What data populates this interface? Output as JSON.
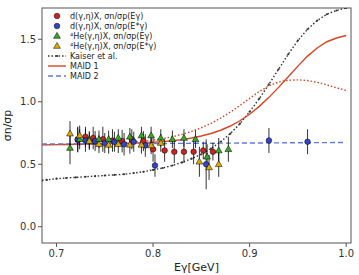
{
  "chart_data": {
    "type": "line",
    "xlabel": "Eγ[GeV]",
    "ylabel": "σn/σp",
    "xlim": [
      0.685,
      1.005
    ],
    "ylim": [
      -0.13,
      1.75
    ],
    "xticks": [
      0.7,
      0.8,
      0.9,
      {
        "value": 1,
        "label": "1.0"
      }
    ],
    "yticks": [
      {
        "value": 0,
        "label": "0.0"
      },
      0.5,
      {
        "value": 1,
        "label": "1.0"
      },
      1.5
    ],
    "grid": false,
    "legend": "upper left",
    "series": [
      {
        "name": "d(γ,η)X, σn/σp(Eγ)",
        "type": "scatter",
        "color": "#cc2222",
        "marker": "circle",
        "x": [
          0.722,
          0.73,
          0.738,
          0.748,
          0.758,
          0.768,
          0.778,
          0.79,
          0.8,
          0.812,
          0.822,
          0.832,
          0.842,
          0.852,
          0.862
        ],
        "values": [
          0.695,
          0.72,
          0.71,
          0.7,
          0.69,
          0.685,
          0.7,
          0.685,
          0.62,
          0.61,
          0.6,
          0.6,
          0.6,
          0.61,
          0.6
        ],
        "yerr": [
          0.1,
          0.08,
          0.09,
          0.1,
          0.09,
          0.09,
          0.08,
          0.08,
          0.1,
          0.09,
          0.09,
          0.09,
          0.1,
          0.07,
          0.07
        ]
      },
      {
        "name": "d(γ,η)X, σn/σp(E*γ)",
        "type": "scatter",
        "color": "#3344cc",
        "marker": "circle",
        "x": [
          0.722,
          0.73,
          0.74,
          0.75,
          0.76,
          0.77,
          0.78,
          0.792,
          0.802,
          0.855,
          0.92,
          0.96
        ],
        "values": [
          0.7,
          0.69,
          0.685,
          0.67,
          0.68,
          0.66,
          0.68,
          0.65,
          0.49,
          0.5,
          0.69,
          0.68
        ],
        "yerr": [
          0.1,
          0.09,
          0.08,
          0.08,
          0.08,
          0.09,
          0.08,
          0.09,
          0.09,
          0.2,
          0.1,
          0.1
        ]
      },
      {
        "name": "⁴He(γ,η)X, σn/σp(Eγ)",
        "type": "scatter",
        "color": "#33aa22",
        "marker": "triangle",
        "x": [
          0.714,
          0.724,
          0.734,
          0.744,
          0.754,
          0.764,
          0.776,
          0.788,
          0.798,
          0.808,
          0.82,
          0.832,
          0.844,
          0.856,
          0.868,
          0.878
        ],
        "values": [
          0.63,
          0.7,
          0.695,
          0.7,
          0.7,
          0.71,
          0.72,
          0.73,
          0.73,
          0.71,
          0.7,
          0.71,
          0.7,
          0.56,
          0.61,
          0.62
        ],
        "yerr": [
          0.13,
          0.08,
          0.07,
          0.07,
          0.07,
          0.07,
          0.07,
          0.07,
          0.07,
          0.07,
          0.07,
          0.07,
          0.07,
          0.1,
          0.1,
          0.1
        ]
      },
      {
        "name": "⁴He(γ,η)X, σn/σp(E*γ)",
        "type": "scatter",
        "color": "#ddaa00",
        "marker": "triangle",
        "x": [
          0.714,
          0.724,
          0.734,
          0.744,
          0.754,
          0.764,
          0.776,
          0.788,
          0.798,
          0.808,
          0.848,
          0.858,
          0.868
        ],
        "values": [
          0.745,
          0.73,
          0.685,
          0.66,
          0.655,
          0.66,
          0.655,
          0.655,
          0.65,
          0.67,
          0.52,
          0.475,
          0.5
        ],
        "yerr": [
          0.1,
          0.08,
          0.07,
          0.07,
          0.07,
          0.07,
          0.07,
          0.07,
          0.07,
          0.07,
          0.12,
          0.1,
          0.1
        ]
      },
      {
        "name": "Kaiser et al.",
        "type": "line",
        "color": "#333333",
        "line_style": "dotted",
        "marker": "point",
        "x": [
          0.685,
          0.69,
          0.7,
          0.71,
          0.72,
          0.73,
          0.74,
          0.75,
          0.76,
          0.77,
          0.78,
          0.79,
          0.8,
          0.81,
          0.82,
          0.83,
          0.84,
          0.85,
          0.86,
          0.87,
          0.88,
          0.89,
          0.9,
          0.91,
          0.92,
          0.93,
          0.94,
          0.95,
          0.96,
          0.97,
          0.98,
          0.99,
          1.0
        ],
        "values": [
          0.37,
          0.375,
          0.385,
          0.39,
          0.395,
          0.4,
          0.405,
          0.41,
          0.415,
          0.42,
          0.43,
          0.44,
          0.455,
          0.47,
          0.49,
          0.515,
          0.545,
          0.58,
          0.625,
          0.68,
          0.745,
          0.825,
          0.92,
          1.025,
          1.14,
          1.26,
          1.38,
          1.49,
          1.58,
          1.65,
          1.7,
          1.73,
          1.75
        ]
      },
      {
        "name": "MAID 1",
        "type": "line",
        "color": "#dd4422",
        "line_style": "solid",
        "x": [
          0.685,
          0.7,
          0.71,
          0.72,
          0.73,
          0.74,
          0.75,
          0.76,
          0.77,
          0.78,
          0.79,
          0.8,
          0.81,
          0.82,
          0.83,
          0.84,
          0.85,
          0.86,
          0.87,
          0.88,
          0.89,
          0.9,
          0.91,
          0.92,
          0.93,
          0.94,
          0.95,
          0.96,
          0.97,
          0.98,
          0.99,
          1.0
        ],
        "values": [
          0.655,
          0.657,
          0.658,
          0.66,
          0.661,
          0.662,
          0.663,
          0.665,
          0.667,
          0.669,
          0.672,
          0.676,
          0.681,
          0.688,
          0.697,
          0.71,
          0.726,
          0.746,
          0.772,
          0.806,
          0.848,
          0.9,
          0.963,
          1.035,
          1.115,
          1.2,
          1.285,
          1.365,
          1.43,
          1.48,
          1.51,
          1.53
        ]
      },
      {
        "type": "line",
        "color": "#dd4422",
        "line_style": "dotted",
        "x": [
          0.685,
          0.7,
          0.71,
          0.72,
          0.73,
          0.74,
          0.75,
          0.76,
          0.77,
          0.78,
          0.79,
          0.8,
          0.81,
          0.82,
          0.83,
          0.84,
          0.85,
          0.86,
          0.87,
          0.88,
          0.89,
          0.9,
          0.91,
          0.92,
          0.93,
          0.94,
          0.95,
          0.96,
          0.97,
          0.98,
          0.99,
          1.0
        ],
        "values": [
          0.655,
          0.657,
          0.658,
          0.66,
          0.661,
          0.663,
          0.665,
          0.668,
          0.672,
          0.677,
          0.684,
          0.693,
          0.705,
          0.72,
          0.739,
          0.763,
          0.792,
          0.827,
          0.869,
          0.917,
          0.97,
          1.027,
          1.082,
          1.128,
          1.158,
          1.172,
          1.175,
          1.17,
          1.155,
          1.135,
          1.112,
          1.09
        ]
      },
      {
        "name": "MAID 2",
        "type": "line",
        "color": "#6677dd",
        "line_style": "dashed",
        "x": [
          0.685,
          0.7,
          0.75,
          0.8,
          0.85,
          0.9,
          0.95,
          1.0
        ],
        "values": [
          0.662,
          0.663,
          0.664,
          0.666,
          0.668,
          0.67,
          0.672,
          0.674
        ]
      }
    ]
  }
}
